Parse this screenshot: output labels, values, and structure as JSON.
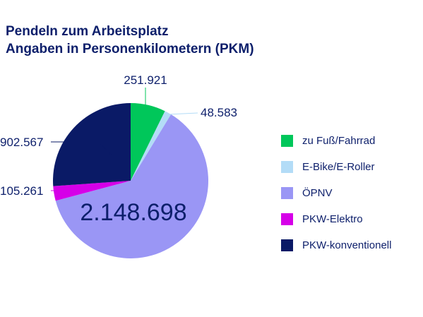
{
  "chart_data": {
    "type": "pie",
    "title": "Pendeln zum Arbeitsplatz",
    "subtitle": "Angaben in Personenkilometern (PKM)",
    "slices": [
      {
        "name": "zu Fuß/Fahrrad",
        "value": 251921,
        "label": "251.921",
        "color": "#00c75a"
      },
      {
        "name": "E-Bike/E-Roller",
        "value": 48583,
        "label": "48.583",
        "color": "#b3dcf7"
      },
      {
        "name": "ÖPNV",
        "value": 2148698,
        "label": "2.148.698",
        "color": "#9a96f5"
      },
      {
        "name": "PKW-Elektro",
        "value": 105261,
        "label": "105.261",
        "color": "#d600e8"
      },
      {
        "name": "PKW-konventionell",
        "value": 902567,
        "label": "902.567",
        "color": "#0a1a66"
      }
    ],
    "legend_position": "right"
  }
}
